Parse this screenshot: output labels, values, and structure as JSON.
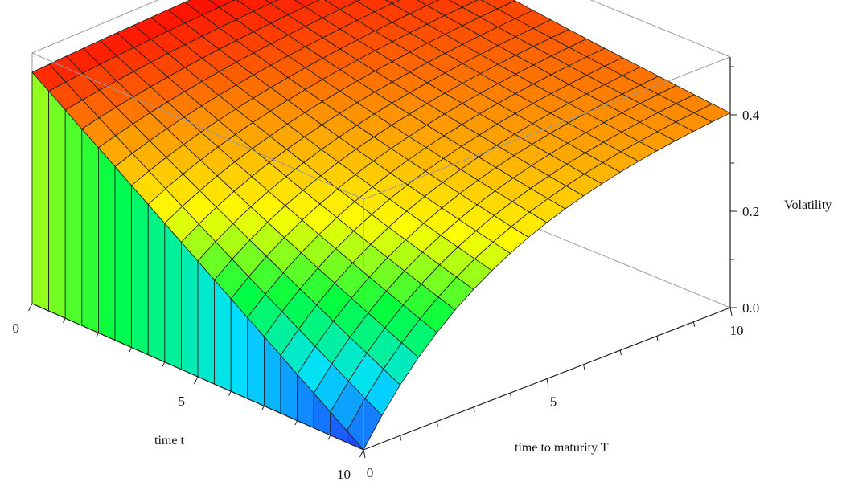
{
  "chart_data": {
    "type": "surface3d",
    "title": "",
    "axes": {
      "t": {
        "label": "time t",
        "range": [
          0,
          10
        ],
        "ticks": [
          "0",
          "5",
          "10"
        ]
      },
      "T": {
        "label": "time to maturity T",
        "range": [
          0,
          10
        ],
        "ticks": [
          "0",
          "5",
          "10"
        ]
      },
      "z": {
        "label": "Volatility",
        "range": [
          0,
          0.5
        ],
        "ticks": [
          "0.0",
          "0.2",
          "0.4"
        ]
      }
    },
    "surface": {
      "description_of_values": "volatility(t, T) on a 21 x 21 grid over t in [0,10], T in [0,10]",
      "t_values": [
        0,
        10
      ],
      "T_values": [
        0,
        10
      ],
      "grid": 21,
      "sample_points": [
        {
          "t": 0,
          "T": 0,
          "v": 0.48
        },
        {
          "t": 0,
          "T": 10,
          "v": 0.5
        },
        {
          "t": 10,
          "T": 0,
          "v": 0.0
        },
        {
          "t": 10,
          "T": 10,
          "v": 0.43
        },
        {
          "t": 5,
          "T": 0,
          "v": 0.12
        },
        {
          "t": 5,
          "T": 5,
          "v": 0.38
        }
      ]
    },
    "colormap": [
      "#2040ff",
      "#00e0ff",
      "#00ff40",
      "#ffff00",
      "#ff9000",
      "#ff0000"
    ],
    "box": true
  }
}
